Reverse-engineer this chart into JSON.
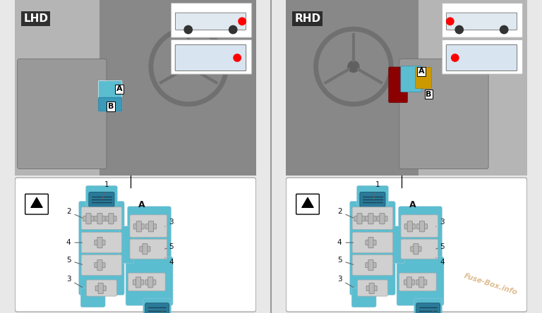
{
  "bg_color": "#e8e8e8",
  "panel_bg": "#ffffff",
  "fuse_blue": "#5bbdd0",
  "fuse_blue_dark": "#3a9ab8",
  "fuse_connector_dark": "#2a7a9a",
  "fuse_gray_area": "#d0d0d0",
  "fuse_cross_color": "#b8b8b8",
  "fuse_cross_edge": "#888888",
  "photo_bg_lhd": "#b0b0b0",
  "photo_bg_rhd": "#a8a8a8",
  "lhd_label": "LHD",
  "rhd_label": "RHD",
  "label_bg": "#2a2a2a",
  "label_fg": "#ffffff",
  "watermark": "Fuse-Box.info",
  "watermark_color": "#cc9955",
  "divider_color": "#999999",
  "panel_border": "#aaaaaa",
  "line_color": "#555555",
  "arrow_color": "#666666",
  "text_color": "#111111",
  "nav_arrow_color": "#111111"
}
